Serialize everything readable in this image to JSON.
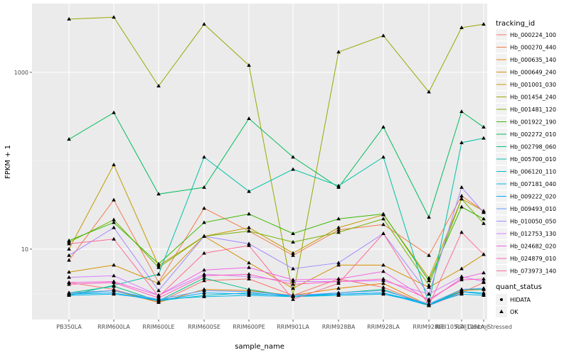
{
  "chart_data": {
    "type": "line",
    "xlabel": "sample_name",
    "ylabel": "FPKM + 1",
    "y_scale": "log10",
    "ylim": [
      1.6,
      6000
    ],
    "y_ticks": [
      10,
      1000
    ],
    "grid": true,
    "legend_placement": "right",
    "categories": [
      "PB350LA",
      "RRIM600LA",
      "RRIM600LE",
      "RRIM600SE",
      "RRIM600PE",
      "RRIM901LA",
      "RRIM928BA",
      "RRIM928LA",
      "RRIM928LE",
      "RRII105LA_Control",
      "RRII105LA_Stressed"
    ],
    "legend_title": "tracking_id",
    "shape_legend": {
      "title": "quant_status",
      "entries": [
        {
          "label": "HIDATA",
          "shape": "circle"
        },
        {
          "label": "OK",
          "shape": "triangle"
        }
      ]
    },
    "series": [
      {
        "name": "Hb_000224_100",
        "color": "#F8766D",
        "values": [
          4.2,
          3.5,
          2.5,
          4.4,
          4.6,
          3.0,
          4.6,
          3.7,
          2.3,
          3.2,
          4.2
        ]
      },
      {
        "name": "Hb_000270_440",
        "color": "#F07E4D",
        "values": [
          7.5,
          36.0,
          4.2,
          29.0,
          16.0,
          8.5,
          16.5,
          19.0,
          8.5,
          40.0,
          27.0
        ]
      },
      {
        "name": "Hb_000635_140",
        "color": "#E58700",
        "values": [
          3.2,
          3.4,
          2.5,
          3.5,
          3.4,
          3.0,
          3.6,
          4.1,
          2.3,
          3.4,
          3.5
        ]
      },
      {
        "name": "Hb_000649_240",
        "color": "#D69100",
        "values": [
          5.5,
          6.6,
          4.1,
          14.0,
          7.0,
          3.6,
          6.6,
          6.6,
          3.7,
          6.0,
          8.7
        ]
      },
      {
        "name": "Hb_001001_030",
        "color": "#C49A00",
        "values": [
          10.0,
          90.0,
          6.5,
          14.0,
          17.5,
          9.0,
          17.5,
          24.5,
          4.7,
          37.0,
          27.0
        ]
      },
      {
        "name": "Hb_001454_240",
        "color": "#99A800",
        "values": [
          4000,
          4200,
          700,
          3500,
          1200,
          3.0,
          1700,
          2600,
          600,
          3200,
          3500
        ]
      },
      {
        "name": "Hb_001481_120",
        "color": "#76B300",
        "values": [
          12.0,
          21.5,
          6.2,
          14.0,
          16.0,
          12.0,
          15.5,
          22.0,
          3.9,
          37.0,
          19.5
        ]
      },
      {
        "name": "Hb_001922_190",
        "color": "#38B900",
        "values": [
          12.5,
          20.0,
          6.8,
          20.0,
          25.0,
          15.0,
          22.0,
          25.0,
          4.4,
          30.0,
          22.0
        ]
      },
      {
        "name": "Hb_002272_010",
        "color": "#00BC59",
        "values": [
          175,
          350,
          42,
          50,
          300,
          110,
          50,
          240,
          23,
          360,
          240
        ]
      },
      {
        "name": "Hb_002798_060",
        "color": "#00BF83",
        "values": [
          3.2,
          3.8,
          2.6,
          4.7,
          3.5,
          2.9,
          3.2,
          3.5,
          2.3,
          3.5,
          3.5
        ]
      },
      {
        "name": "Hb_005700_010",
        "color": "#00C1A7",
        "values": [
          3.0,
          3.9,
          5.2,
          110,
          45,
          80,
          52,
          110,
          2.4,
          160,
          180
        ]
      },
      {
        "name": "Hb_006120_110",
        "color": "#00BECB",
        "values": [
          3.1,
          3.4,
          2.6,
          3.0,
          3.2,
          2.9,
          3.1,
          3.2,
          2.4,
          3.3,
          3.2
        ]
      },
      {
        "name": "Hb_007181_040",
        "color": "#00B8E5",
        "values": [
          3.0,
          3.1,
          2.7,
          2.9,
          3.0,
          2.9,
          3.0,
          3.1,
          2.4,
          3.1,
          3.0
        ]
      },
      {
        "name": "Hb_009222_020",
        "color": "#00ABFD",
        "values": [
          3.1,
          3.2,
          2.6,
          3.2,
          3.1,
          3.0,
          3.1,
          3.2,
          2.3,
          3.3,
          3.1
        ]
      },
      {
        "name": "Hb_009493_010",
        "color": "#619CFF",
        "values": [
          3.2,
          3.4,
          2.7,
          3.4,
          3.3,
          3.0,
          3.2,
          3.4,
          2.4,
          3.5,
          3.6
        ]
      },
      {
        "name": "Hb_010050_050",
        "color": "#A58AFF",
        "values": [
          8.5,
          17.5,
          3.4,
          14.0,
          11.5,
          6.0,
          7.0,
          15.0,
          3.1,
          50.0,
          26.0
        ]
      },
      {
        "name": "Hb_012753_130",
        "color": "#D77FFF",
        "values": [
          4.8,
          5.0,
          3.0,
          5.2,
          4.9,
          4.3,
          4.3,
          4.4,
          3.1,
          4.9,
          4.3
        ]
      },
      {
        "name": "Hb_024682_020",
        "color": "#F564E3",
        "values": [
          4.2,
          4.3,
          3.0,
          5.8,
          6.2,
          4.5,
          4.6,
          5.6,
          2.6,
          4.7,
          5.4
        ]
      },
      {
        "name": "Hb_024879_010",
        "color": "#FF62BC",
        "values": [
          4.0,
          4.2,
          2.8,
          5.0,
          5.2,
          4.0,
          4.3,
          4.6,
          2.7,
          4.5,
          4.6
        ]
      },
      {
        "name": "Hb_073973_140",
        "color": "#FD6C94",
        "values": [
          11.5,
          13.0,
          2.9,
          9.0,
          11.0,
          2.7,
          4.1,
          15.0,
          2.3,
          15.5,
          8.7
        ]
      }
    ]
  }
}
